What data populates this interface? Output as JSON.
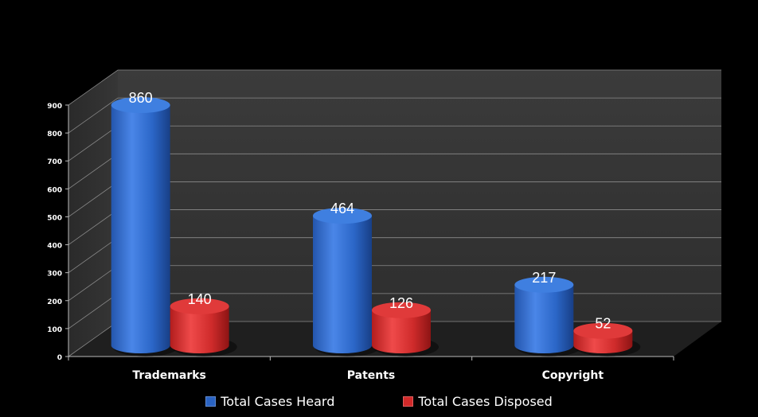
{
  "chart_data": {
    "type": "bar",
    "categories": [
      "Trademarks",
      "Patents",
      "Copyright"
    ],
    "series": [
      {
        "name": "Total Cases Heard",
        "values": [
          860,
          464,
          217
        ],
        "color": "#2a63c2"
      },
      {
        "name": "Total Cases Disposed",
        "values": [
          140,
          126,
          52
        ],
        "color": "#d22a2a"
      }
    ],
    "ylim": [
      0,
      900
    ],
    "yticks": [
      0,
      100,
      200,
      300,
      400,
      500,
      600,
      700,
      800,
      900
    ],
    "grid": true,
    "legend": "bottom",
    "style": "3d-cylinder"
  }
}
